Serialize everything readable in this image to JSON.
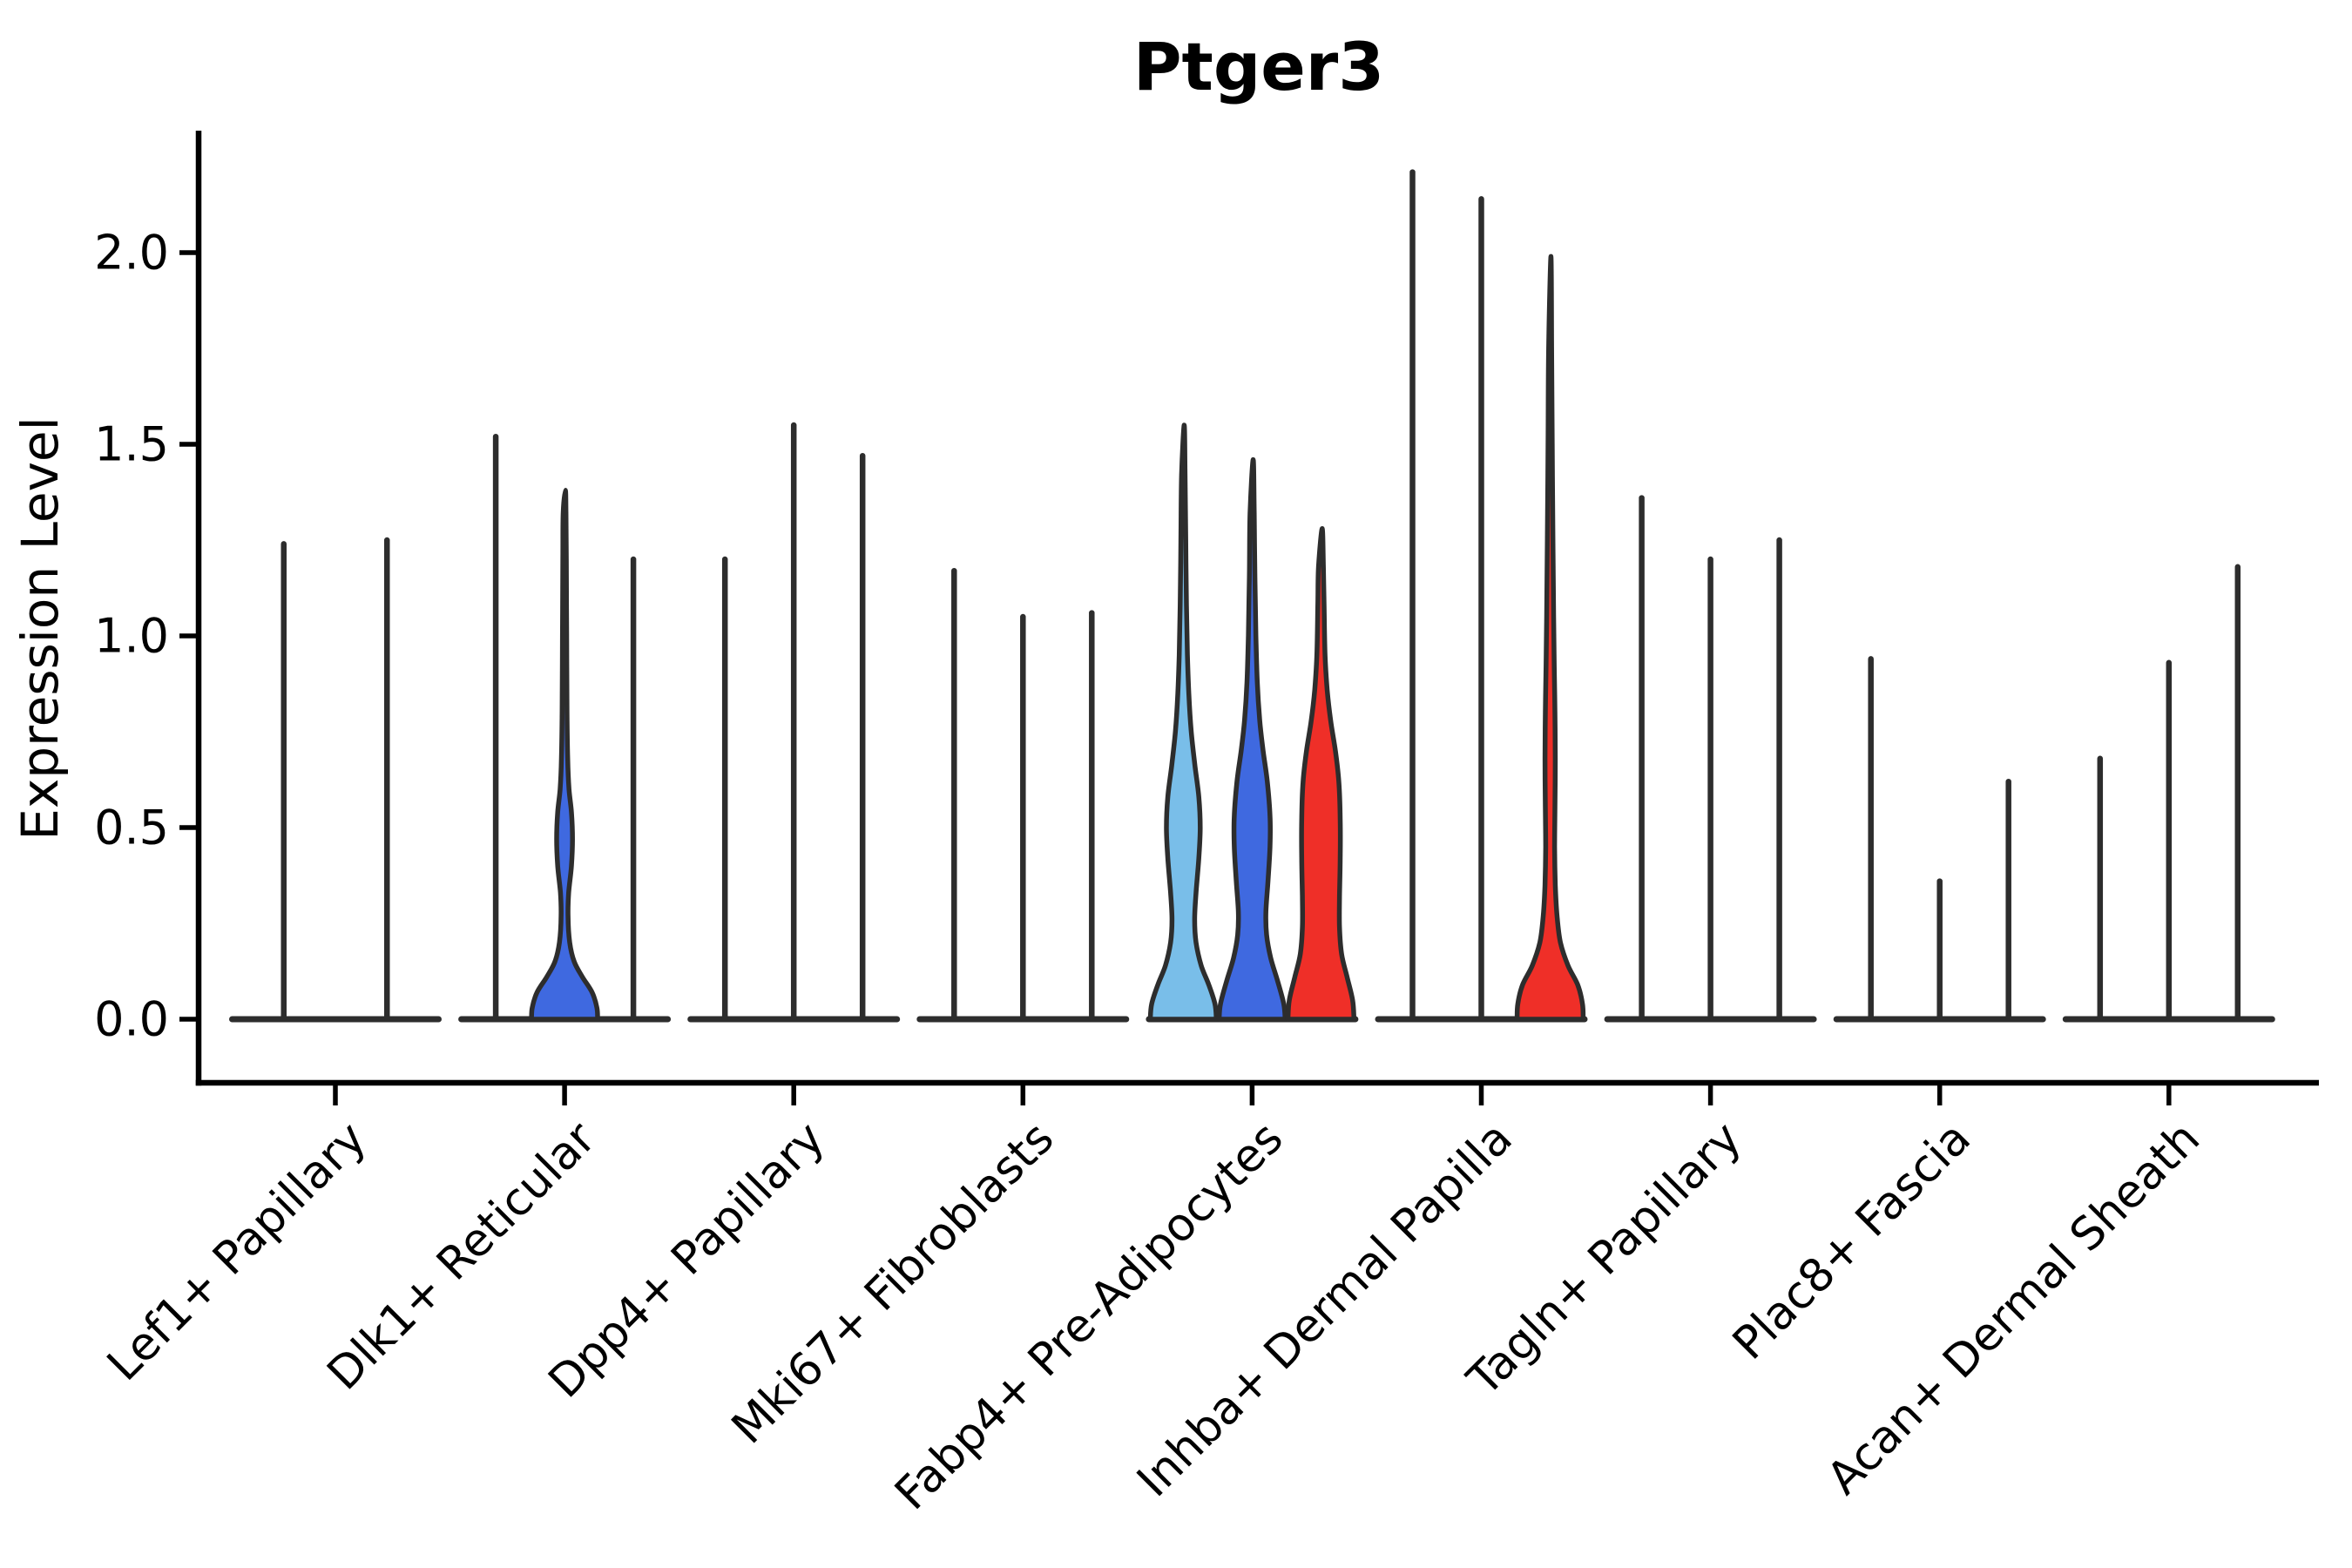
{
  "chart_data": {
    "type": "violin",
    "title": "Ptger3",
    "ylabel": "Expression Level",
    "xlabel": "",
    "ylim": [
      -0.07,
      2.32
    ],
    "yticks": [
      0.0,
      0.5,
      1.0,
      1.5,
      2.0
    ],
    "ytick_labels": [
      "0.0",
      "0.5",
      "1.0",
      "1.5",
      "2.0"
    ],
    "grid": false,
    "legend": "none",
    "palette": {
      "light_blue": "#79BEE9",
      "royal_blue": "#3F69E0",
      "red": "#EF2F28",
      "violin_outline": "#2d2d2d",
      "axis_color": "#000000"
    },
    "categories": [
      "Lef1+ Papillary",
      "Dlk1+ Reticular",
      "Dpp4+ Papillary",
      "Mki67+ Fibroblasts",
      "Fabp4+ Pre-Adipocytes",
      "Inhba+ Dermal Papilla",
      "Tagln+ Papillary",
      "Plac8+ Fascia",
      "Acan+ Dermal Sheath"
    ],
    "groups": [
      {
        "label": "Lef1+ Papillary",
        "violins": [
          {
            "max": 1.24,
            "style": "spike",
            "fill": null
          },
          {
            "max": 1.25,
            "style": "spike",
            "fill": null
          }
        ]
      },
      {
        "label": "Dlk1+ Reticular",
        "violins": [
          {
            "max": 1.52,
            "style": "spike",
            "fill": null
          },
          {
            "max": 1.38,
            "style": "body",
            "fill": "#3F69E0",
            "profile": [
              [
                0,
                0.48
              ],
              [
                0.03,
                0.47
              ],
              [
                0.07,
                0.4
              ],
              [
                0.11,
                0.26
              ],
              [
                0.15,
                0.14
              ],
              [
                0.2,
                0.075
              ],
              [
                0.27,
                0.05
              ],
              [
                0.33,
                0.06
              ],
              [
                0.4,
                0.1
              ],
              [
                0.47,
                0.115
              ],
              [
                0.54,
                0.1
              ],
              [
                0.6,
                0.065
              ],
              [
                0.68,
                0.045
              ],
              [
                0.8,
                0.035
              ],
              [
                1.0,
                0.03
              ],
              [
                1.2,
                0.025
              ],
              [
                1.32,
                0.02
              ],
              [
                1.38,
                0.012
              ]
            ]
          },
          {
            "max": 1.2,
            "style": "spike",
            "fill": null
          }
        ]
      },
      {
        "label": "Dpp4+ Papillary",
        "violins": [
          {
            "max": 1.2,
            "style": "spike",
            "fill": null
          },
          {
            "max": 1.55,
            "style": "spike",
            "fill": null
          },
          {
            "max": 1.47,
            "style": "spike",
            "fill": null
          }
        ]
      },
      {
        "label": "Mki67+ Fibroblasts",
        "violins": [
          {
            "max": 1.17,
            "style": "spike",
            "fill": null
          },
          {
            "max": 1.05,
            "style": "spike",
            "fill": null
          },
          {
            "max": 1.06,
            "style": "spike",
            "fill": null
          }
        ]
      },
      {
        "label": "Fabp4+ Pre-Adipocytes",
        "violins": [
          {
            "max": 1.55,
            "style": "body",
            "fill": "#79BEE9",
            "profile": [
              [
                0,
                0.48
              ],
              [
                0.04,
                0.46
              ],
              [
                0.09,
                0.37
              ],
              [
                0.14,
                0.26
              ],
              [
                0.2,
                0.185
              ],
              [
                0.26,
                0.165
              ],
              [
                0.33,
                0.185
              ],
              [
                0.42,
                0.225
              ],
              [
                0.5,
                0.245
              ],
              [
                0.58,
                0.225
              ],
              [
                0.66,
                0.17
              ],
              [
                0.75,
                0.115
              ],
              [
                0.85,
                0.08
              ],
              [
                0.95,
                0.06
              ],
              [
                1.08,
                0.045
              ],
              [
                1.25,
                0.035
              ],
              [
                1.42,
                0.025
              ],
              [
                1.55,
                0.013
              ]
            ]
          },
          {
            "max": 1.46,
            "style": "body",
            "fill": "#3F69E0",
            "profile": [
              [
                0,
                0.48
              ],
              [
                0.04,
                0.46
              ],
              [
                0.1,
                0.37
              ],
              [
                0.16,
                0.27
              ],
              [
                0.22,
                0.21
              ],
              [
                0.28,
                0.2
              ],
              [
                0.36,
                0.23
              ],
              [
                0.45,
                0.26
              ],
              [
                0.53,
                0.26
              ],
              [
                0.62,
                0.22
              ],
              [
                0.7,
                0.16
              ],
              [
                0.78,
                0.11
              ],
              [
                0.88,
                0.075
              ],
              [
                1.0,
                0.055
              ],
              [
                1.15,
                0.04
              ],
              [
                1.32,
                0.03
              ],
              [
                1.46,
                0.015
              ]
            ]
          },
          {
            "max": 1.28,
            "style": "body",
            "fill": "#EF2F28",
            "profile": [
              [
                0,
                0.48
              ],
              [
                0.05,
                0.46
              ],
              [
                0.11,
                0.38
              ],
              [
                0.17,
                0.3
              ],
              [
                0.24,
                0.27
              ],
              [
                0.32,
                0.27
              ],
              [
                0.42,
                0.28
              ],
              [
                0.52,
                0.28
              ],
              [
                0.62,
                0.26
              ],
              [
                0.7,
                0.21
              ],
              [
                0.78,
                0.14
              ],
              [
                0.86,
                0.09
              ],
              [
                0.95,
                0.06
              ],
              [
                1.08,
                0.045
              ],
              [
                1.18,
                0.035
              ],
              [
                1.28,
                0.018
              ]
            ]
          }
        ]
      },
      {
        "label": "Inhba+ Dermal Papilla",
        "violins": [
          {
            "max": 2.21,
            "style": "spike",
            "fill": null
          },
          {
            "max": 2.14,
            "style": "spike",
            "fill": null
          },
          {
            "max": 1.99,
            "style": "body",
            "fill": "#EF2F28",
            "profile": [
              [
                0,
                0.48
              ],
              [
                0.04,
                0.47
              ],
              [
                0.09,
                0.4
              ],
              [
                0.14,
                0.26
              ],
              [
                0.2,
                0.15
              ],
              [
                0.27,
                0.1
              ],
              [
                0.35,
                0.075
              ],
              [
                0.45,
                0.065
              ],
              [
                0.55,
                0.07
              ],
              [
                0.68,
                0.075
              ],
              [
                0.8,
                0.07
              ],
              [
                0.92,
                0.06
              ],
              [
                1.05,
                0.05
              ],
              [
                1.25,
                0.04
              ],
              [
                1.5,
                0.03
              ],
              [
                1.75,
                0.022
              ],
              [
                1.99,
                0.012
              ]
            ]
          }
        ]
      },
      {
        "label": "Tagln+ Papillary",
        "violins": [
          {
            "max": 1.36,
            "style": "spike",
            "fill": null
          },
          {
            "max": 1.2,
            "style": "spike",
            "fill": null
          },
          {
            "max": 1.25,
            "style": "spike",
            "fill": null
          }
        ]
      },
      {
        "label": "Plac8+ Fascia",
        "violins": [
          {
            "max": 0.94,
            "style": "spike",
            "fill": null
          },
          {
            "max": 0.36,
            "style": "spike",
            "fill": null
          },
          {
            "max": 0.62,
            "style": "spike",
            "fill": null
          }
        ]
      },
      {
        "label": "Acan+ Dermal Sheath",
        "violins": [
          {
            "max": 0.68,
            "style": "spike",
            "fill": null
          },
          {
            "max": 0.93,
            "style": "spike",
            "fill": null
          },
          {
            "max": 1.18,
            "style": "spike",
            "fill": null
          }
        ]
      }
    ]
  }
}
